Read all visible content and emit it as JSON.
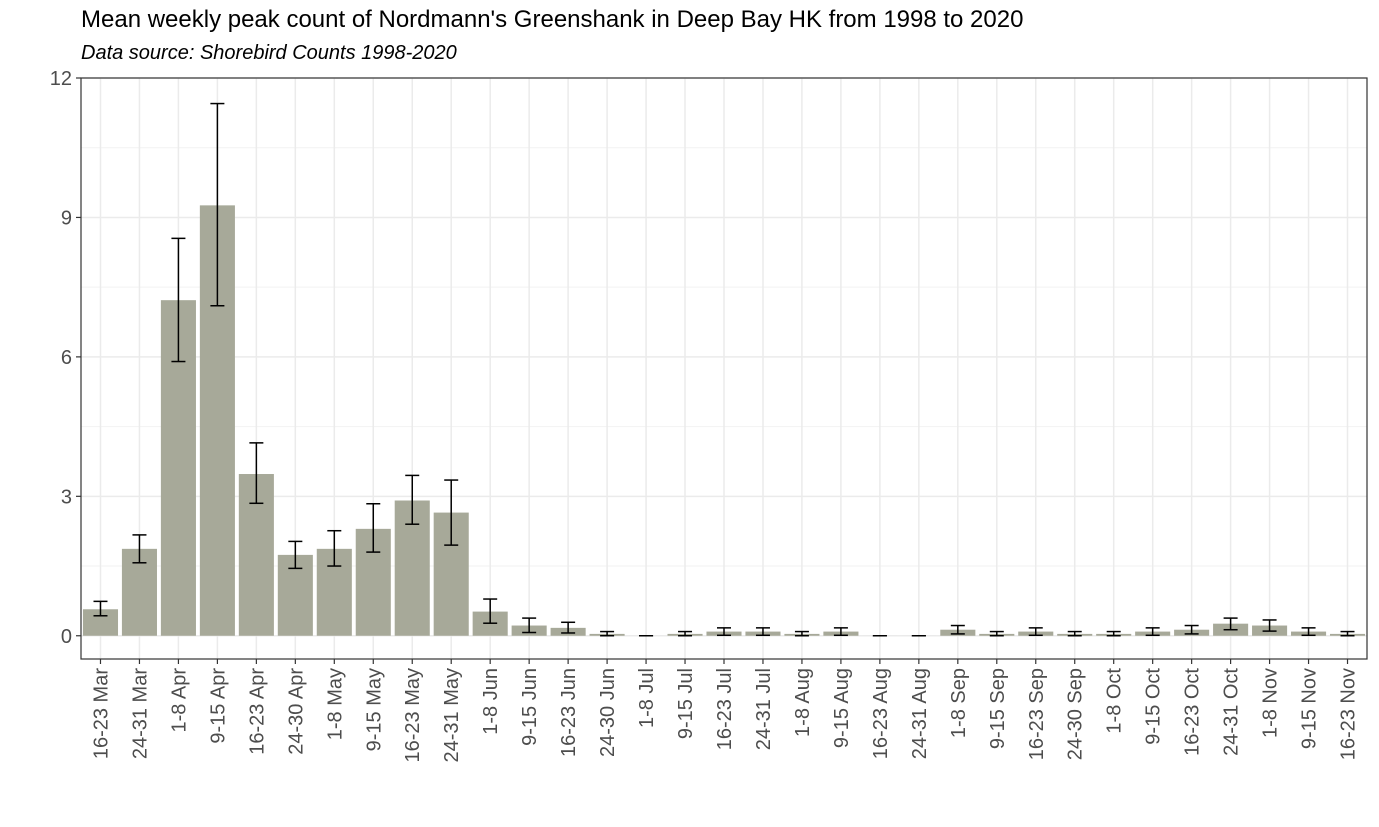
{
  "chart_data": {
    "type": "bar",
    "title": "Mean weekly peak count of Nordmann's Greenshank in Deep Bay HK from 1998 to 2020",
    "subtitle": "Data source: Shorebird Counts 1998-2020",
    "xlabel": "",
    "ylabel": "",
    "ylim": [
      -0.5,
      12
    ],
    "yticks": [
      0,
      3,
      6,
      9,
      12
    ],
    "grid": true,
    "bar_color": "#a7a999",
    "categories": [
      "16-23 Mar",
      "24-31 Mar",
      "1-8 Apr",
      "9-15 Apr",
      "16-23 Apr",
      "24-30 Apr",
      "1-8 May",
      "9-15 May",
      "16-23 May",
      "24-31 May",
      "1-8 Jun",
      "9-15 Jun",
      "16-23 Jun",
      "24-30 Jun",
      "1-8 Jul",
      "9-15 Jul",
      "16-23 Jul",
      "24-31 Jul",
      "1-8 Aug",
      "9-15 Aug",
      "16-23 Aug",
      "24-31 Aug",
      "1-8 Sep",
      "9-15 Sep",
      "16-23 Sep",
      "24-30 Sep",
      "1-8 Oct",
      "9-15 Oct",
      "16-23 Oct",
      "24-31 Oct",
      "1-8 Nov",
      "9-15 Nov",
      "16-23 Nov"
    ],
    "values": [
      0.57,
      1.87,
      7.22,
      9.26,
      3.48,
      1.74,
      1.87,
      2.3,
      2.91,
      2.65,
      0.52,
      0.22,
      0.17,
      0.04,
      0.0,
      0.04,
      0.09,
      0.09,
      0.04,
      0.09,
      0.0,
      0.0,
      0.13,
      0.04,
      0.09,
      0.04,
      0.04,
      0.09,
      0.13,
      0.26,
      0.22,
      0.09,
      0.04
    ],
    "error_lower": [
      0.43,
      1.57,
      5.9,
      7.1,
      2.85,
      1.45,
      1.5,
      1.8,
      2.4,
      1.95,
      0.27,
      0.07,
      0.06,
      0.0,
      0.0,
      0.0,
      0.01,
      0.01,
      0.0,
      0.01,
      0.0,
      0.0,
      0.04,
      0.0,
      0.01,
      0.0,
      0.0,
      0.01,
      0.04,
      0.13,
      0.1,
      0.01,
      0.0
    ],
    "error_upper": [
      0.74,
      2.17,
      8.55,
      11.45,
      4.15,
      2.03,
      2.26,
      2.84,
      3.45,
      3.35,
      0.79,
      0.38,
      0.29,
      0.09,
      0.0,
      0.09,
      0.17,
      0.17,
      0.09,
      0.17,
      0.0,
      0.0,
      0.22,
      0.09,
      0.17,
      0.09,
      0.09,
      0.17,
      0.22,
      0.38,
      0.34,
      0.17,
      0.09
    ]
  }
}
